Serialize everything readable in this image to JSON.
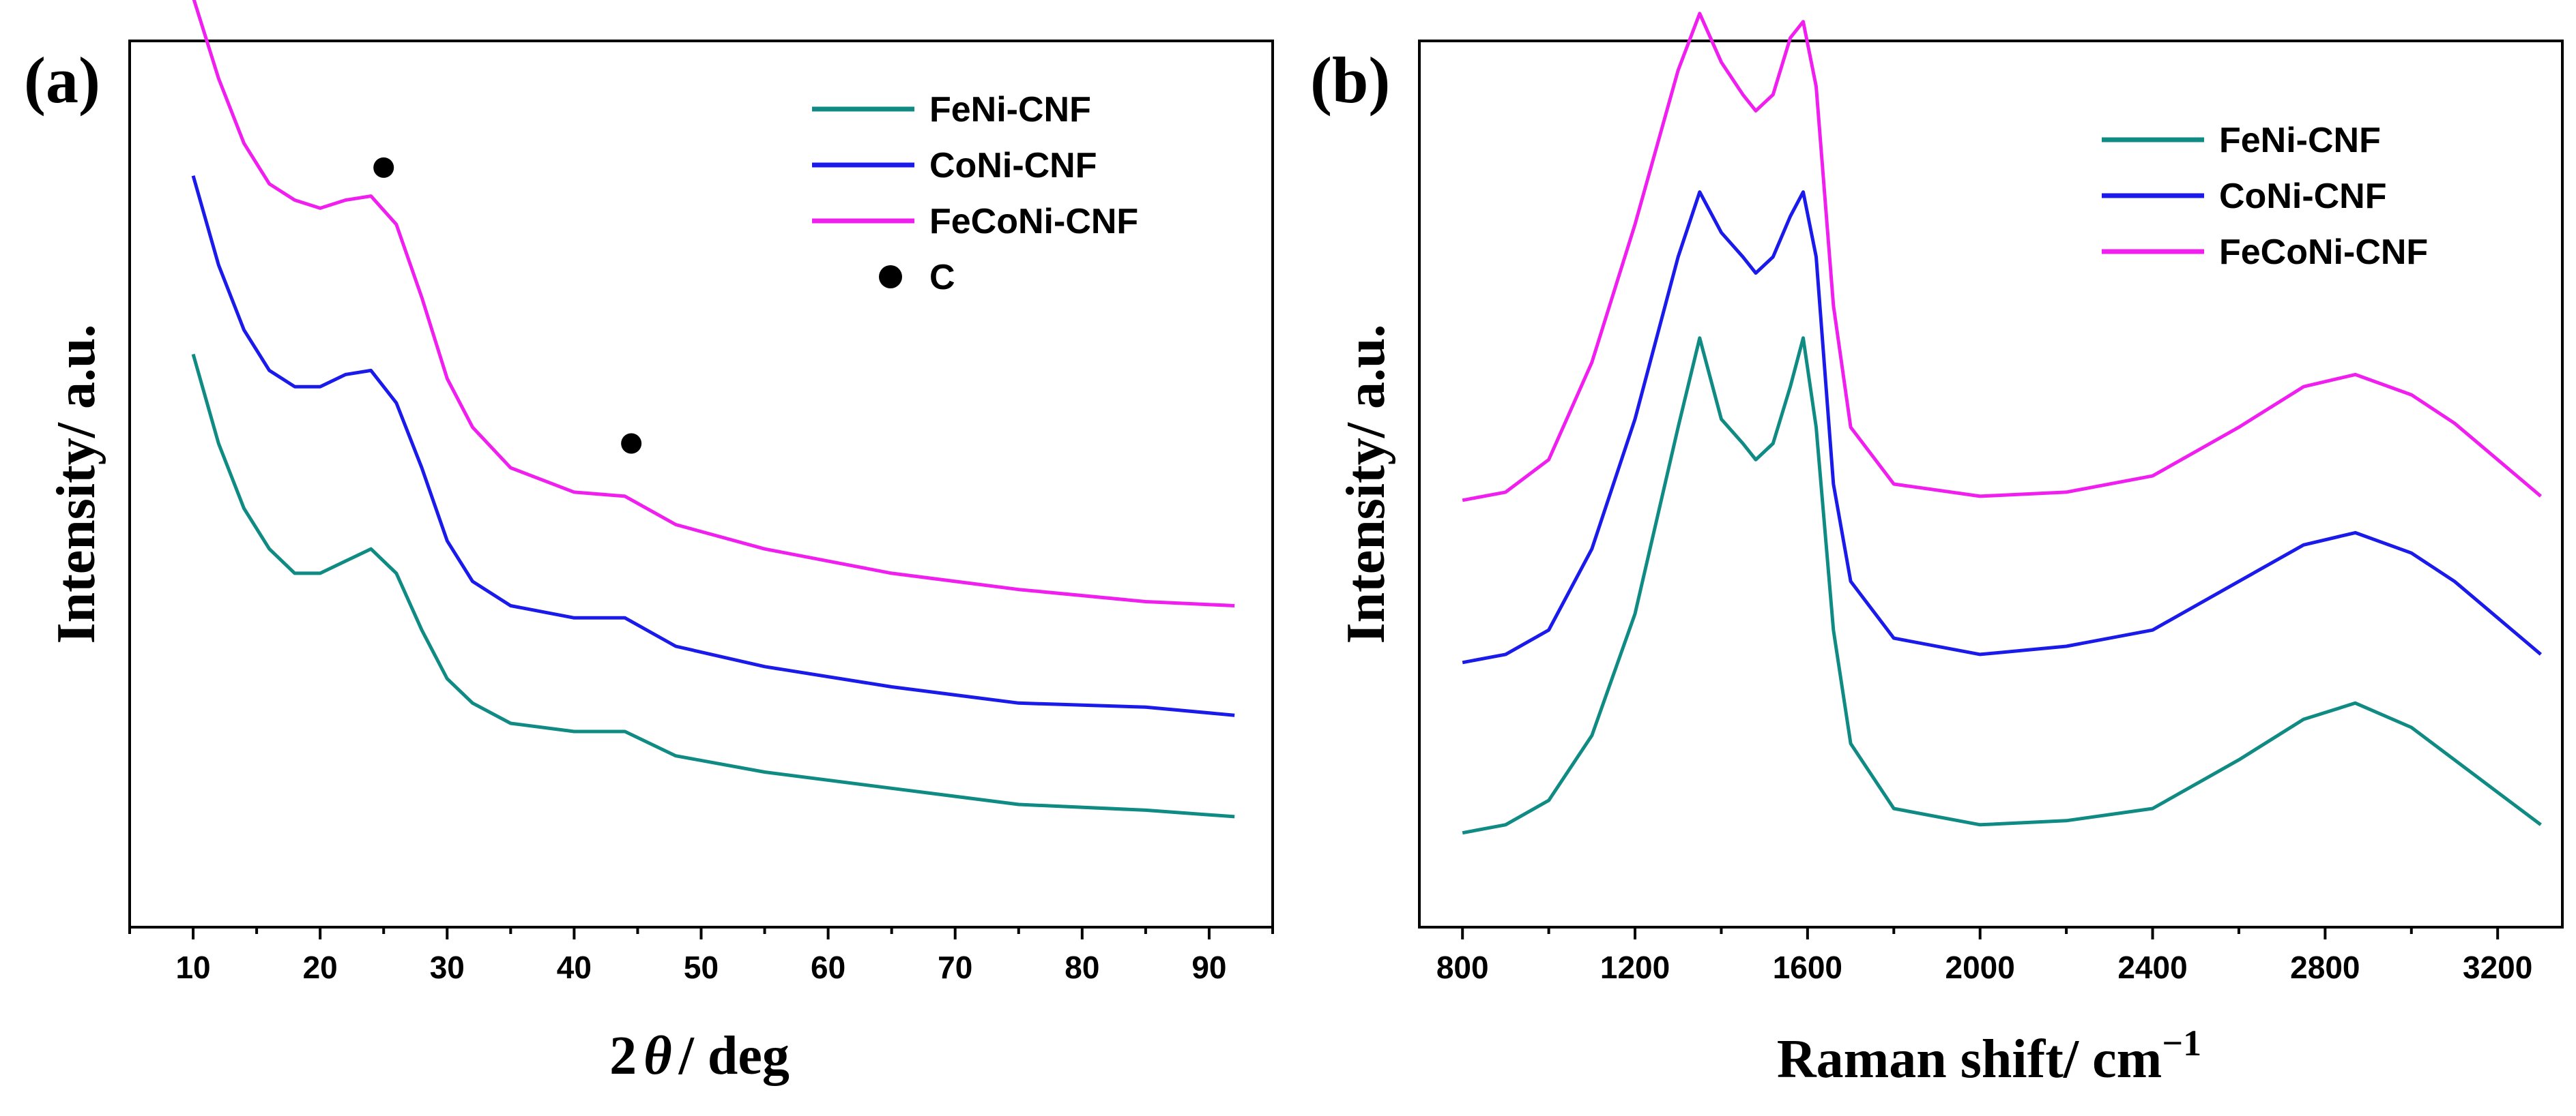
{
  "chart_data": [
    {
      "type": "line",
      "panel_label": "(a)",
      "xlabel_prefix": "2",
      "xlabel_symbol": "θ",
      "xlabel_suffix": "/ deg",
      "ylabel": "Intensity/ a.u.",
      "xlim": [
        5,
        95
      ],
      "ylim": [
        0,
        100
      ],
      "xticks": [
        10,
        20,
        30,
        40,
        50,
        60,
        70,
        80,
        90
      ],
      "legend_position": "top-right",
      "series": [
        {
          "name": "FeNi-CNF",
          "color": "#0f8b84",
          "x": [
            10,
            12,
            14,
            16,
            18,
            20,
            22,
            24,
            26,
            28,
            30,
            32,
            35,
            40,
            44,
            48,
            55,
            65,
            75,
            85,
            92
          ],
          "y": [
            66,
            55,
            47,
            42,
            39,
            39,
            40.5,
            42,
            39,
            32,
            26,
            23,
            20.5,
            19.5,
            19.5,
            16.5,
            14.5,
            12.5,
            10.5,
            9.8,
            9
          ]
        },
        {
          "name": "CoNi-CNF",
          "color": "#1a1aeb",
          "x": [
            10,
            12,
            14,
            16,
            18,
            20,
            22,
            24,
            26,
            28,
            30,
            32,
            35,
            40,
            44,
            48,
            55,
            65,
            75,
            85,
            92
          ],
          "y": [
            88,
            77,
            69,
            64,
            62,
            62,
            63.5,
            64,
            60,
            52,
            43,
            38,
            35,
            33.5,
            33.5,
            30,
            27.5,
            25,
            23,
            22.5,
            21.5
          ]
        },
        {
          "name": "FeCoNi-CNF",
          "color": "#f01ff0",
          "x": [
            10,
            12,
            14,
            16,
            18,
            20,
            22,
            24,
            26,
            28,
            30,
            32,
            35,
            40,
            44,
            48,
            55,
            65,
            75,
            85,
            92
          ],
          "y": [
            110,
            100,
            92,
            87,
            85,
            84,
            85,
            85.5,
            82,
            73,
            63,
            57,
            52,
            49,
            48.5,
            45,
            42,
            39,
            37,
            35.5,
            35
          ]
        }
      ],
      "markers": {
        "name": "C",
        "color": "#000000",
        "points": [
          {
            "x": 25,
            "y": 89
          },
          {
            "x": 44.5,
            "y": 55
          }
        ]
      }
    },
    {
      "type": "line",
      "panel_label": "(b)",
      "xlabel": "Raman shift/ cm",
      "xlabel_sup": "−1",
      "ylabel": "Intensity/ a.u.",
      "xlim": [
        700,
        3350
      ],
      "ylim": [
        0,
        100
      ],
      "xticks": [
        800,
        1200,
        1600,
        2000,
        2400,
        2800,
        3200
      ],
      "legend_position": "top-right",
      "series": [
        {
          "name": "FeNi-CNF",
          "color": "#0f8b84",
          "x": [
            800,
            900,
            1000,
            1100,
            1200,
            1300,
            1350,
            1400,
            1450,
            1480,
            1520,
            1560,
            1590,
            1620,
            1660,
            1700,
            1800,
            2000,
            2200,
            2400,
            2600,
            2750,
            2870,
            3000,
            3100,
            3200,
            3300
          ],
          "y": [
            7,
            8,
            11,
            19,
            34,
            57,
            68,
            58,
            55,
            53,
            55,
            62,
            68,
            57,
            32,
            18,
            10,
            8,
            8.5,
            10,
            16,
            21,
            23,
            20,
            16,
            12,
            8
          ]
        },
        {
          "name": "CoNi-CNF",
          "color": "#1a1aeb",
          "x": [
            800,
            900,
            1000,
            1100,
            1200,
            1300,
            1350,
            1400,
            1450,
            1480,
            1520,
            1560,
            1590,
            1620,
            1660,
            1700,
            1800,
            2000,
            2200,
            2400,
            2600,
            2750,
            2870,
            3000,
            3100,
            3200,
            3300
          ],
          "y": [
            28,
            29,
            32,
            42,
            58,
            78,
            86,
            81,
            78,
            76,
            78,
            83,
            86,
            78,
            50,
            38,
            31,
            29,
            30,
            32,
            38,
            42.5,
            44,
            41.5,
            38,
            33.5,
            29
          ]
        },
        {
          "name": "FeCoNi-CNF",
          "color": "#f01ff0",
          "x": [
            800,
            900,
            1000,
            1100,
            1200,
            1300,
            1350,
            1400,
            1450,
            1480,
            1520,
            1560,
            1590,
            1620,
            1660,
            1700,
            1800,
            2000,
            2200,
            2400,
            2600,
            2750,
            2870,
            3000,
            3100,
            3200,
            3300
          ],
          "y": [
            48,
            49,
            53,
            65,
            82,
            101,
            108,
            102,
            98,
            96,
            98,
            105,
            107,
            99,
            72,
            57,
            50,
            48.5,
            49,
            51,
            57,
            62,
            63.5,
            61,
            57.5,
            53,
            48.5
          ]
        }
      ]
    }
  ]
}
